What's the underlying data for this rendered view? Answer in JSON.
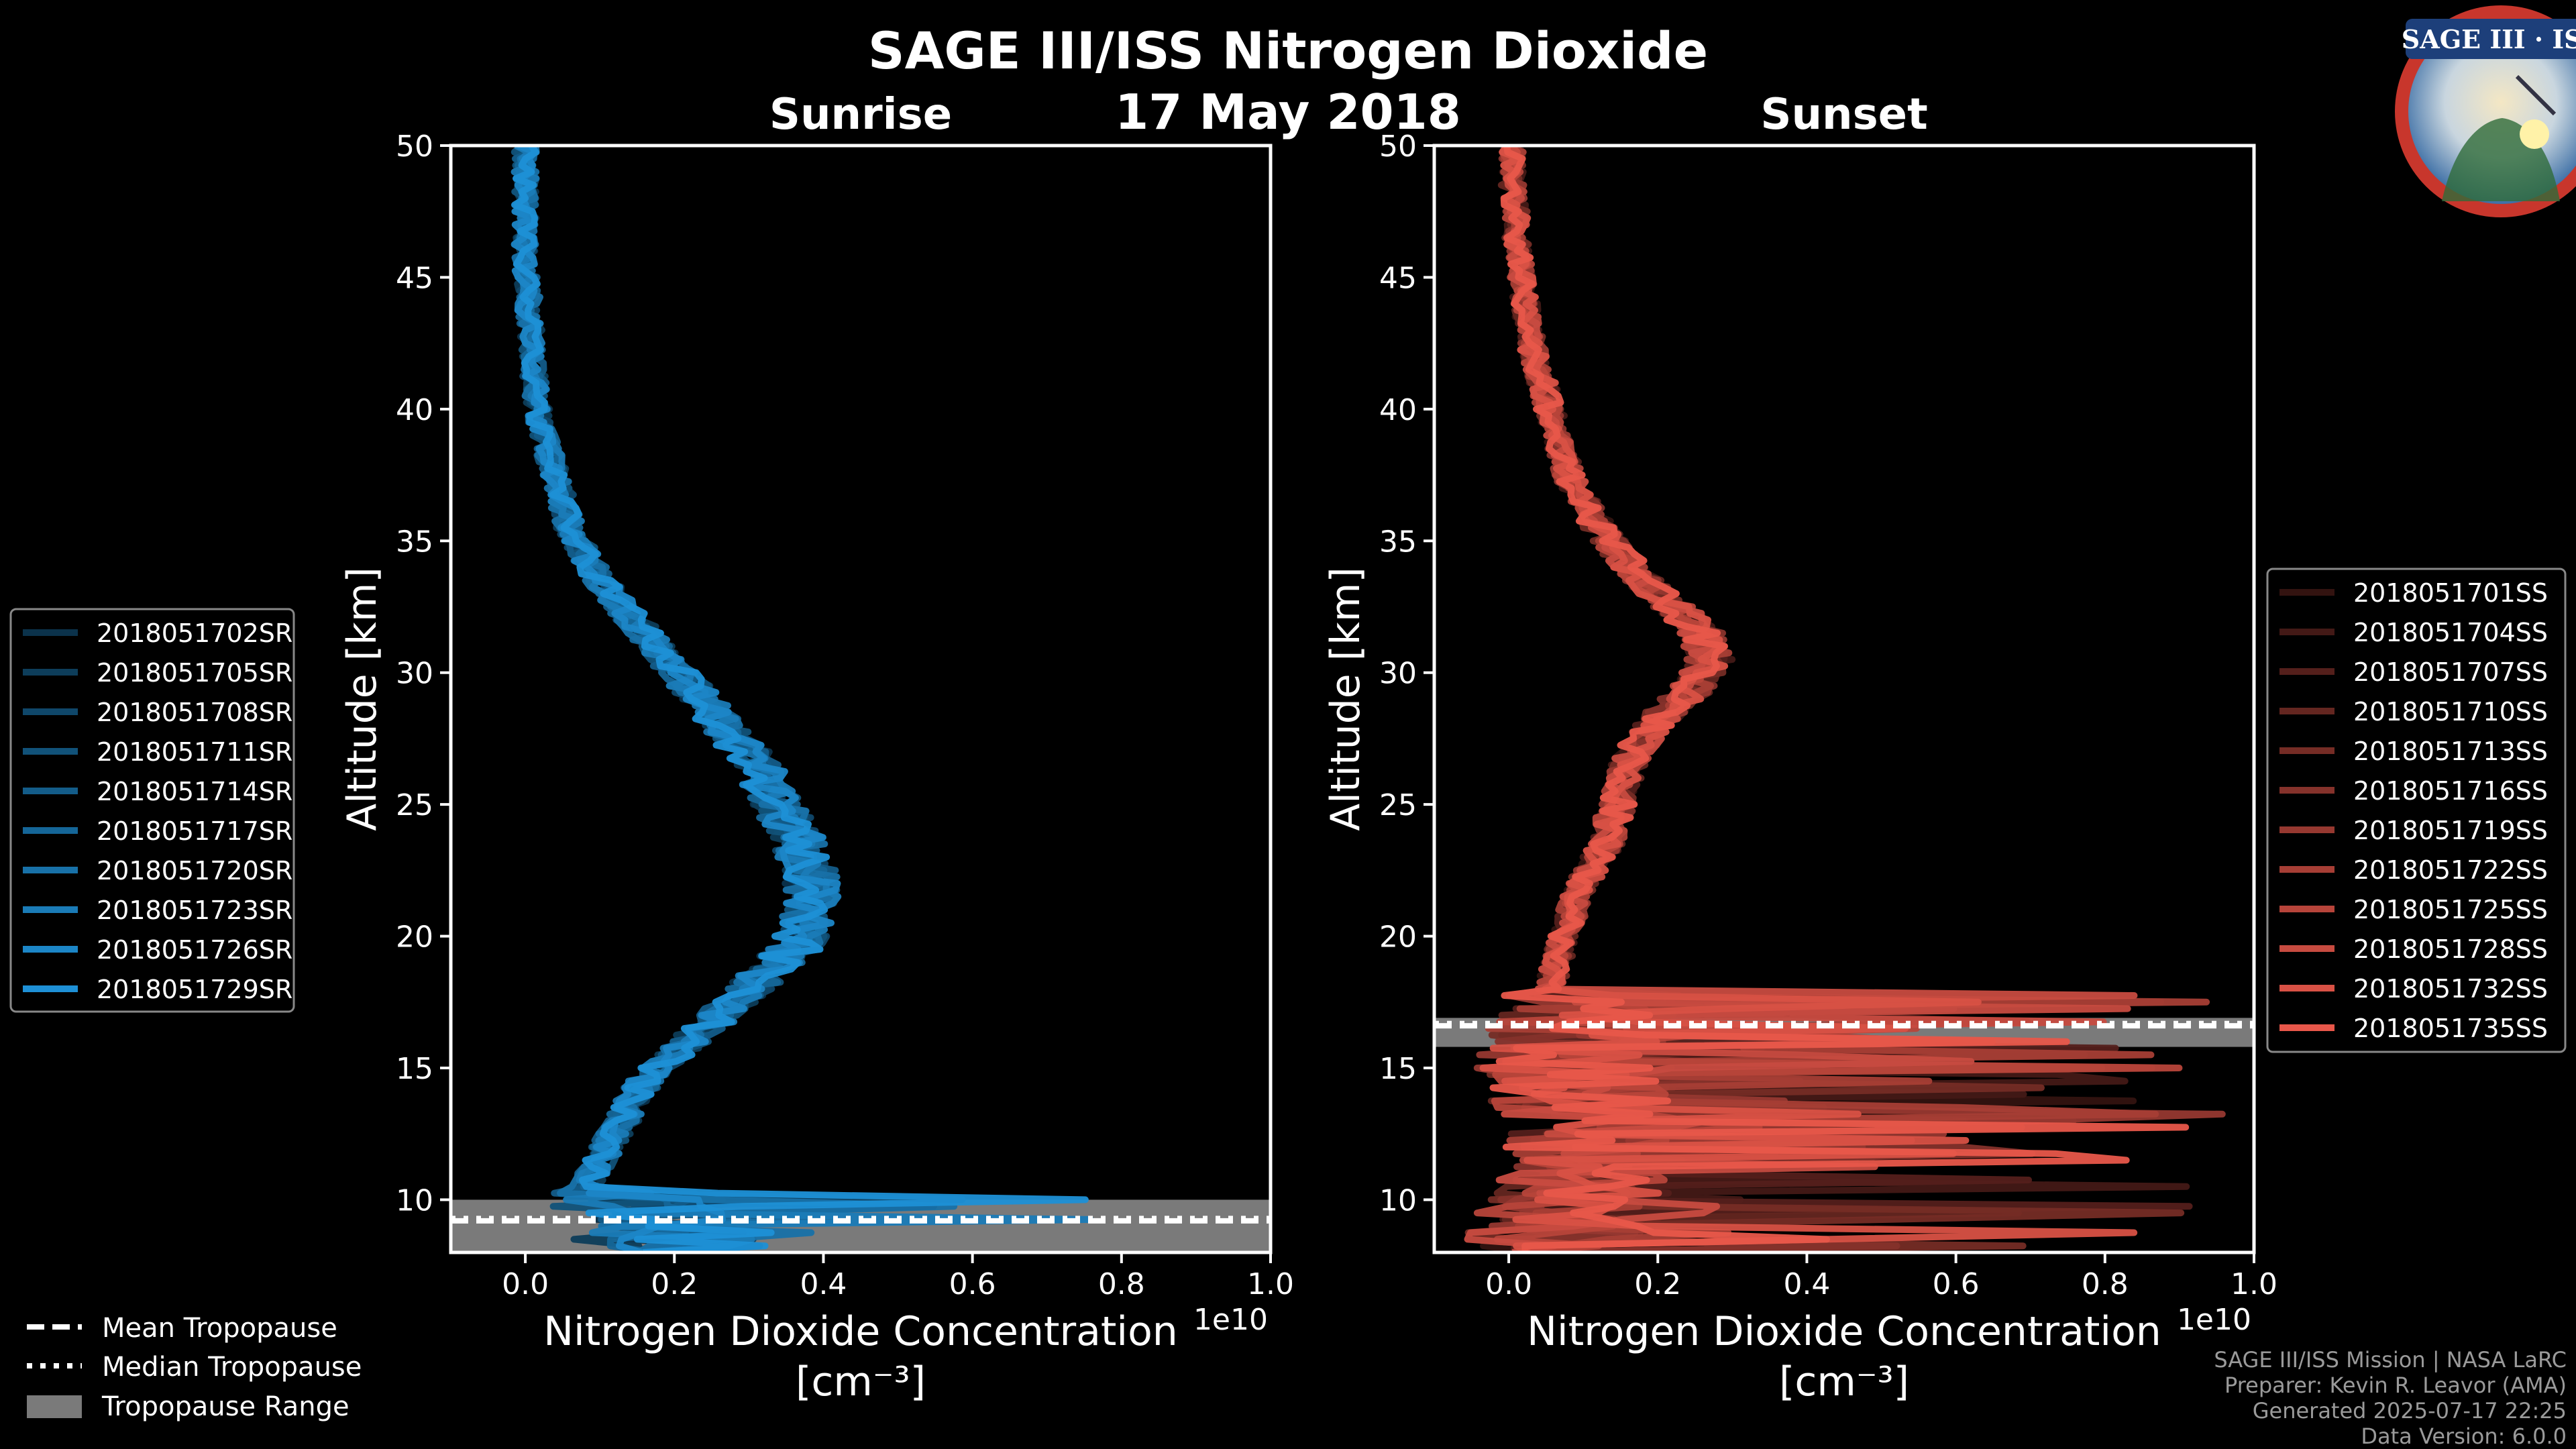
{
  "title": "SAGE III/ISS Nitrogen Dioxide",
  "date": "17 May 2018",
  "colors": {
    "background": "#000000",
    "sunrise": "#1e90d6",
    "sunset": "#e8574a",
    "tropo_range": "#7a7a7a"
  },
  "chart_data": [
    {
      "type": "line",
      "subtitle": "Sunrise",
      "xlabel": "Nitrogen Dioxide Concentration",
      "xunit": "[cm⁻³]",
      "xscale_label": "1e10",
      "ylabel": "Altitude [km]",
      "xlim": [
        -0.1,
        1.0
      ],
      "ylim": [
        8,
        50
      ],
      "xticks": [
        "0.0",
        "0.2",
        "0.4",
        "0.6",
        "0.8",
        "1.0"
      ],
      "yticks": [
        "10",
        "15",
        "20",
        "25",
        "30",
        "35",
        "40",
        "45",
        "50"
      ],
      "tropopause": {
        "mean": 9.2,
        "median": 9.3,
        "range": [
          8.0,
          10.0
        ]
      },
      "legend": [
        "2018051702SR",
        "2018051705SR",
        "2018051708SR",
        "2018051711SR",
        "2018051714SR",
        "2018051717SR",
        "2018051720SR",
        "2018051723SR",
        "2018051726SR",
        "2018051729SR"
      ],
      "profile": {
        "altitude": [
          8.5,
          9.5,
          10.5,
          11.5,
          12.5,
          13.5,
          14.5,
          15.5,
          16.5,
          17.5,
          18.5,
          19.5,
          20.5,
          21.5,
          22.5,
          23.5,
          24.5,
          25.5,
          26.5,
          27.5,
          28.5,
          29.5,
          30.5,
          31.5,
          32.5,
          33.5,
          34.5,
          35.5,
          36.5,
          37.5,
          38.5,
          39.5,
          40.5,
          41.5,
          42.5,
          43.5,
          44.5,
          45.5,
          46.5,
          47.5,
          48.5,
          49.5
        ],
        "mean": [
          0.15,
          0.12,
          0.08,
          0.1,
          0.12,
          0.14,
          0.16,
          0.2,
          0.24,
          0.28,
          0.32,
          0.36,
          0.38,
          0.39,
          0.38,
          0.37,
          0.35,
          0.33,
          0.31,
          0.28,
          0.25,
          0.22,
          0.19,
          0.16,
          0.13,
          0.1,
          0.08,
          0.06,
          0.05,
          0.04,
          0.03,
          0.02,
          0.015,
          0.01,
          0.01,
          0.005,
          0.005,
          0.0,
          0.0,
          0.0,
          0.0,
          0.0
        ]
      }
    },
    {
      "type": "line",
      "subtitle": "Sunset",
      "xlabel": "Nitrogen Dioxide Concentration",
      "xunit": "[cm⁻³]",
      "xscale_label": "1e10",
      "ylabel": "Altitude [km]",
      "xlim": [
        -0.1,
        1.0
      ],
      "ylim": [
        8,
        50
      ],
      "xticks": [
        "0.0",
        "0.2",
        "0.4",
        "0.6",
        "0.8",
        "1.0"
      ],
      "yticks": [
        "10",
        "15",
        "20",
        "25",
        "30",
        "35",
        "40",
        "45",
        "50"
      ],
      "tropopause": {
        "mean": 16.6,
        "median": 16.7,
        "range": [
          15.8,
          16.9
        ]
      },
      "legend": [
        "2018051701SS",
        "2018051704SS",
        "2018051707SS",
        "2018051710SS",
        "2018051713SS",
        "2018051716SS",
        "2018051719SS",
        "2018051722SS",
        "2018051725SS",
        "2018051728SS",
        "2018051732SS",
        "2018051735SS"
      ],
      "profile": {
        "altitude": [
          8.5,
          9.5,
          10.5,
          11.5,
          12.5,
          13.5,
          14.5,
          15.5,
          16.5,
          17.5,
          18.5,
          19.5,
          20.5,
          21.5,
          22.5,
          23.5,
          24.5,
          25.5,
          26.5,
          27.5,
          28.5,
          29.5,
          30.5,
          31.5,
          32.5,
          33.5,
          34.5,
          35.5,
          36.5,
          37.5,
          38.5,
          39.5,
          40.5,
          41.5,
          42.5,
          43.5,
          44.5,
          45.5,
          46.5,
          47.5,
          48.5,
          49.5
        ],
        "mean": [
          0.02,
          0.03,
          0.05,
          0.06,
          0.07,
          0.06,
          0.05,
          0.04,
          0.04,
          0.05,
          0.06,
          0.07,
          0.08,
          0.09,
          0.11,
          0.13,
          0.14,
          0.15,
          0.16,
          0.18,
          0.21,
          0.25,
          0.27,
          0.26,
          0.22,
          0.18,
          0.15,
          0.12,
          0.1,
          0.08,
          0.07,
          0.06,
          0.05,
          0.04,
          0.03,
          0.025,
          0.02,
          0.015,
          0.01,
          0.01,
          0.005,
          0.005
        ]
      }
    }
  ],
  "tropopause_legend": [
    "Mean Tropopause",
    "Median Tropopause",
    "Tropopause Range"
  ],
  "logo": {
    "text": "SAGE III · ISS"
  },
  "credits": [
    "SAGE III/ISS Mission | NASA LaRC",
    "Preparer: Kevin R. Leavor (AMA)",
    "Generated 2025-07-17 22:25",
    "Data Version: 6.0.0"
  ]
}
